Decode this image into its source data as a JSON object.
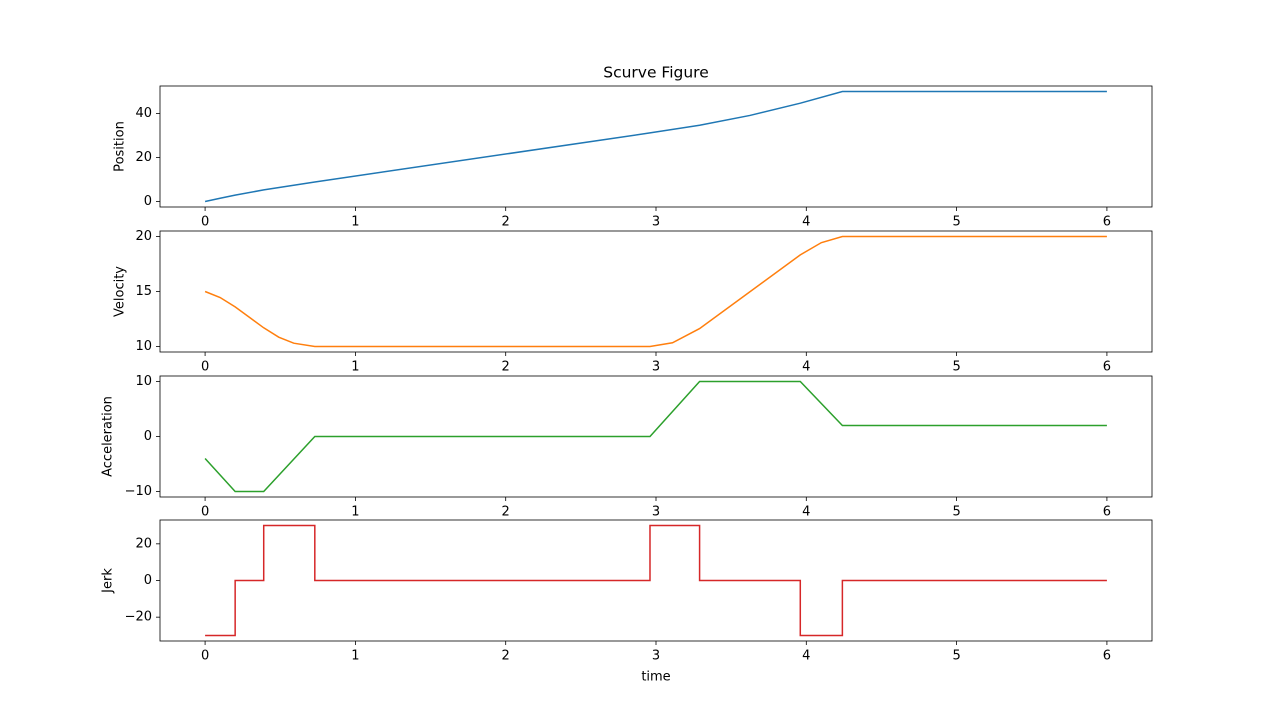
{
  "chart_data": [
    {
      "type": "line",
      "title": "Scurve Figure",
      "ylabel": "Position",
      "color": "#1f77b4",
      "x": [
        0,
        0.1,
        0.2,
        0.39,
        0.73,
        2.96,
        3.29,
        3.625,
        3.96,
        4.24,
        6
      ],
      "values": [
        0,
        1.475,
        2.88,
        5.28,
        8.88,
        31.18,
        34.66,
        39.12,
        44.69,
        50,
        50
      ],
      "xlim": [
        -0.3,
        6.3
      ],
      "ylim": [
        -2.5,
        52.5
      ],
      "xticks": [
        0,
        1,
        2,
        3,
        4,
        5,
        6
      ],
      "yticks": [
        0,
        20,
        40
      ]
    },
    {
      "type": "line",
      "ylabel": "Velocity",
      "color": "#ff7f0e",
      "x": [
        0,
        0.1,
        0.2,
        0.3,
        0.39,
        0.49,
        0.59,
        0.73,
        2.96,
        3.11,
        3.29,
        3.6,
        3.96,
        4.1,
        4.24,
        6
      ],
      "values": [
        15,
        14.45,
        13.6,
        12.6,
        11.7,
        10.85,
        10.3,
        10,
        10,
        10.34,
        11.63,
        14.73,
        18.33,
        19.44,
        20,
        20
      ],
      "xlim": [
        -0.3,
        6.3
      ],
      "ylim": [
        9.5,
        20.5
      ],
      "xticks": [
        0,
        1,
        2,
        3,
        4,
        5,
        6
      ],
      "yticks": [
        10,
        15,
        20
      ]
    },
    {
      "type": "line",
      "ylabel": "Acceleration",
      "color": "#2ca02c",
      "x": [
        0,
        0.2,
        0.39,
        0.73,
        2.96,
        3.29,
        3.96,
        4.24,
        6
      ],
      "values": [
        -4,
        -10,
        -10,
        0,
        0,
        10,
        10,
        2,
        2
      ],
      "xlim": [
        -0.3,
        6.3
      ],
      "ylim": [
        -11,
        11
      ],
      "xticks": [
        0,
        1,
        2,
        3,
        4,
        5,
        6
      ],
      "yticks": [
        {
          "value": -10,
          "label": "−10"
        },
        0,
        10
      ]
    },
    {
      "type": "line",
      "ylabel": "Jerk",
      "xlabel": "time",
      "color": "#d62728",
      "x": [
        0,
        0.2,
        0.2,
        0.39,
        0.39,
        0.73,
        0.73,
        2.96,
        2.96,
        3.29,
        3.29,
        3.96,
        3.96,
        4.24,
        4.24,
        6
      ],
      "values": [
        -30,
        -30,
        0,
        0,
        30,
        30,
        0,
        0,
        30,
        30,
        0,
        0,
        -30,
        -30,
        0,
        0
      ],
      "xlim": [
        -0.3,
        6.3
      ],
      "ylim": [
        -33,
        33
      ],
      "xticks": [
        0,
        1,
        2,
        3,
        4,
        5,
        6
      ],
      "yticks": [
        {
          "value": -20,
          "label": "−20"
        },
        0,
        20
      ]
    }
  ]
}
